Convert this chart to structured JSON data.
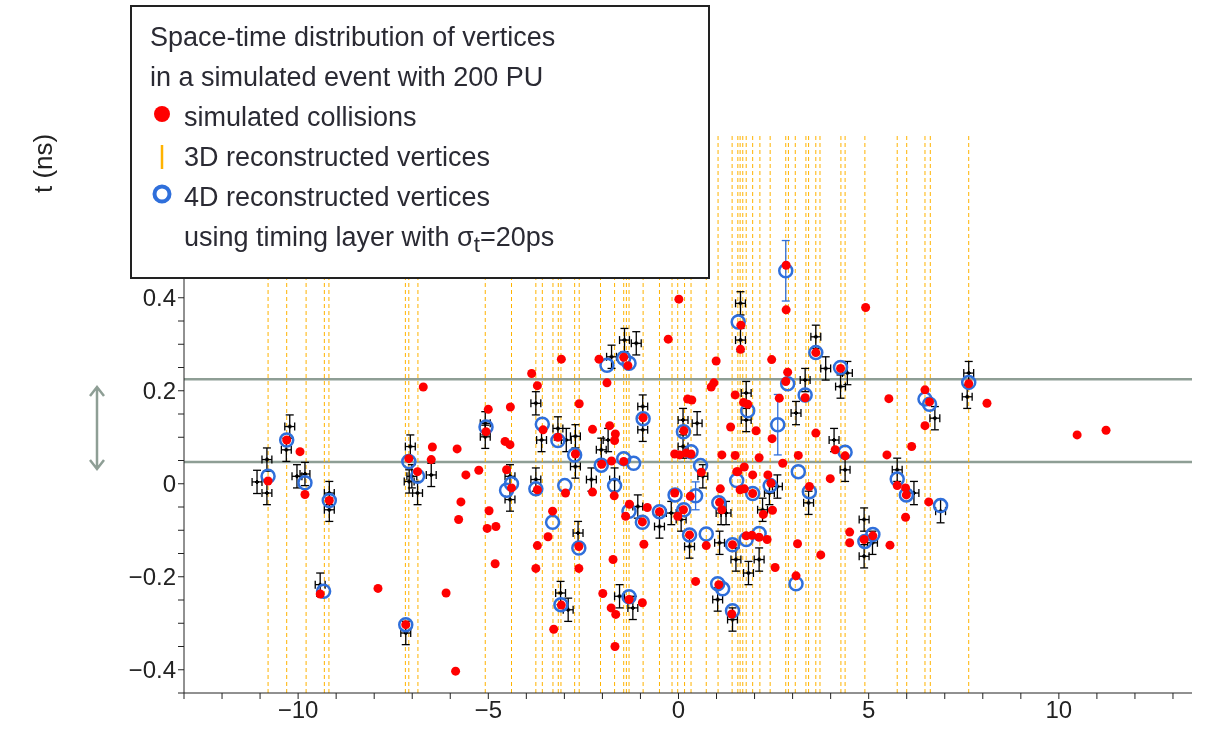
{
  "chart_data": {
    "type": "scatter",
    "ylabel": "t (ns)",
    "legend_title": "Space-time distribution of vertices\nin a simulated event with 200 PU",
    "legend": "top left",
    "annotations": [
      "3D reconstructed vertices"
    ],
    "xlim": [
      -13,
      13.5
    ],
    "ylim": [
      -0.45,
      0.75
    ],
    "xticks": [
      {
        "value": -13,
        "label": null
      },
      {
        "value": -12,
        "label": null
      },
      {
        "value": -11,
        "label": null
      },
      {
        "value": -10,
        "label": "−10"
      },
      {
        "value": -9,
        "label": null
      },
      {
        "value": -8,
        "label": null
      },
      {
        "value": -7,
        "label": null
      },
      {
        "value": -6,
        "label": null
      },
      {
        "value": -5,
        "label": "−5"
      },
      {
        "value": -4,
        "label": null
      },
      {
        "value": -3,
        "label": null
      },
      {
        "value": -2,
        "label": null
      },
      {
        "value": -1,
        "label": null
      },
      0,
      {
        "value": 1,
        "label": null
      },
      {
        "value": 2,
        "label": null
      },
      {
        "value": 3,
        "label": null
      },
      {
        "value": 4,
        "label": null
      },
      5,
      {
        "value": 6,
        "label": null
      },
      {
        "value": 7,
        "label": null
      },
      {
        "value": 8,
        "label": null
      },
      {
        "value": 9,
        "label": null
      },
      10,
      {
        "value": 11,
        "label": null
      },
      {
        "value": 12,
        "label": null
      },
      {
        "value": 13,
        "label": null
      }
    ],
    "yticks": [
      {
        "value": -0.45,
        "label": null
      },
      {
        "value": -0.4,
        "label": "−0.4"
      },
      {
        "value": -0.35,
        "label": null
      },
      {
        "value": -0.3,
        "label": null
      },
      {
        "value": -0.25,
        "label": null
      },
      {
        "value": -0.2,
        "label": "−0.2"
      },
      {
        "value": -0.15,
        "label": null
      },
      {
        "value": -0.1,
        "label": null
      },
      {
        "value": -0.05,
        "label": null
      },
      0,
      {
        "value": 0.05,
        "label": null
      },
      {
        "value": 0.1,
        "label": null
      },
      {
        "value": 0.15,
        "label": null
      },
      0.2,
      {
        "value": 0.25,
        "label": null
      },
      {
        "value": 0.3,
        "label": null
      },
      {
        "value": 0.35,
        "label": null
      },
      0.4
    ],
    "series": [
      {
        "name": "simulated collisions",
        "color": "#ff0000",
        "marker": "circle",
        "x": [
          -10.79,
          -10.3,
          -9.95,
          -9.82,
          -9.18,
          -9.42,
          -7.9,
          -7.17,
          -7.09,
          -6.86,
          -6.71,
          -6.47,
          -6.5,
          -5.82,
          -5.59,
          -5.25,
          -5.72,
          -5.78,
          -6.11,
          -5.86,
          -5.06,
          -5.0,
          -4.98,
          -5.03,
          -4.8,
          -4.82,
          -4.42,
          -4.56,
          -4.43,
          -4.52,
          -4.39,
          -3.86,
          -3.71,
          -3.56,
          -3.71,
          -3.75,
          -3.71,
          -3.08,
          -3.17,
          -3.31,
          -3.43,
          -2.97,
          -3.08,
          -3.28,
          -2.61,
          -2.71,
          -2.62,
          -2.62,
          -2.26,
          -2.09,
          -1.88,
          -2.02,
          -2.26,
          -1.81,
          -1.66,
          -1.68,
          -1.76,
          -1.69,
          -1.72,
          -1.99,
          -1.77,
          -1.65,
          -1.67,
          -1.44,
          -1.33,
          -1.44,
          -1.29,
          -1.39,
          -1.3,
          -0.95,
          -0.93,
          -0.82,
          -0.95,
          -0.91,
          -0.5,
          -0.27,
          0.01,
          -0.1,
          0.03,
          0.14,
          0.24,
          0.35,
          0.2,
          0.33,
          -0.1,
          0.31,
          -0.02,
          0.13,
          0.29,
          0.6,
          0.45,
          0.86,
          0.93,
          0.99,
          1.14,
          1.1,
          1.08,
          1.14,
          0.73,
          1.06,
          1.42,
          1.4,
          1.49,
          1.37,
          1.49,
          1.53,
          2.83,
          2.83,
          1.64,
          1.63,
          2.45,
          4.92,
          3.61,
          4.26,
          2.87,
          2.82,
          1.71,
          1.82,
          2.65,
          3.33,
          5.53,
          6.48,
          6.6,
          6.48,
          7.63,
          2.04,
          2.46,
          3.61,
          4.12,
          4.38,
          5.48,
          6.13,
          2.12,
          2.74,
          3.15,
          1.56,
          1.73,
          1.95,
          1.62,
          1.73,
          2.35,
          2.43,
          1.95,
          3.44,
          3.99,
          5.75,
          5.97,
          5.99,
          6.58,
          5.97,
          2.47,
          2.23,
          1.78,
          1.93,
          2.12,
          2.33,
          3.13,
          3.74,
          4.5,
          4.5,
          4.88,
          5.11,
          5.56,
          2.54,
          3.09,
          8.11,
          10.48,
          11.24
        ],
        "values": [
          0.006,
          0.094,
          0.069,
          -0.023,
          -0.036,
          -0.237,
          -0.225,
          -0.303,
          0.054,
          0.026,
          0.208,
          0.079,
          0.052,
          0.075,
          0.019,
          0.029,
          -0.039,
          -0.077,
          -0.235,
          -0.403,
          0.112,
          0.16,
          -0.058,
          -0.096,
          -0.092,
          -0.172,
          0.165,
          0.091,
          0.084,
          0.03,
          -0.009,
          0.237,
          0.211,
          0.116,
          -0.133,
          -0.182,
          -0.013,
          0.268,
          0.1,
          -0.059,
          -0.114,
          -0.02,
          -0.261,
          -0.313,
          0.172,
          0.064,
          -0.135,
          -0.182,
          0.117,
          0.268,
          0.217,
          0.042,
          -0.018,
          0.125,
          0.107,
          0.093,
          0.049,
          -0.026,
          -0.163,
          -0.236,
          -0.267,
          -0.281,
          -0.35,
          0.272,
          0.254,
          0.048,
          -0.044,
          -0.07,
          -0.249,
          -0.256,
          0.142,
          -0.051,
          -0.082,
          -0.13,
          -0.06,
          0.311,
          0.397,
          0.064,
          0.062,
          0.114,
          0.182,
          0.18,
          0.066,
          0.064,
          -0.02,
          -0.027,
          -0.07,
          -0.056,
          -0.11,
          0.025,
          -0.21,
          0.208,
          0.217,
          0.264,
          0.062,
          -0.011,
          -0.04,
          -0.056,
          -0.133,
          -0.217,
          -0.131,
          -0.28,
          0.191,
          0.122,
          0.061,
          0.026,
          0.47,
          0.374,
          0.341,
          0.289,
          0.267,
          0.379,
          0.282,
          0.248,
          0.24,
          0.22,
          0.175,
          0.171,
          0.184,
          0.185,
          0.183,
          0.202,
          0.176,
          0.125,
          0.215,
          0.114,
          0.097,
          0.109,
          0.073,
          0.06,
          0.062,
          0.08,
          0.056,
          0.044,
          0.061,
          0.026,
          0.036,
          0.019,
          -0.013,
          -0.011,
          0.019,
          0.001,
          -0.021,
          -0.006,
          0.011,
          -0.004,
          -0.009,
          -0.024,
          -0.039,
          -0.072,
          -0.057,
          -0.066,
          -0.112,
          -0.111,
          -0.115,
          -0.12,
          -0.129,
          -0.153,
          -0.104,
          -0.127,
          -0.12,
          -0.112,
          -0.132,
          -0.18,
          -0.198,
          0.173,
          0.105,
          0.115
        ]
      },
      {
        "name": "4D reconstructed vertices\nusing timing layer with σ$_{t}$=20ps",
        "color": "#2f6fdb",
        "marker": "circle",
        "x": [
          -10.79,
          -10.3,
          -9.82,
          -9.18,
          -9.33,
          -7.17,
          -7.09,
          -6.86,
          -5.06,
          -4.52,
          -4.39,
          -3.75,
          -3.58,
          -3.17,
          -3.31,
          -2.99,
          -2.73,
          -2.62,
          -3.09,
          -1.88,
          -2.03,
          -1.68,
          -1.44,
          -1.3,
          -1.44,
          -1.18,
          -1.3,
          -1.3,
          -0.93,
          -0.95,
          -0.5,
          0.13,
          0.33,
          0.58,
          0.45,
          -0.09,
          0.14,
          0.29,
          0.73,
          1.06,
          1.03,
          1.16,
          1.42,
          1.42,
          1.53,
          1.57,
          2.82,
          3.61,
          4.26,
          2.87,
          1.82,
          2.61,
          3.33,
          6.48,
          6.6,
          7.63,
          4.38,
          1.95,
          1.78,
          2.12,
          2.41,
          3.15,
          3.44,
          3.09,
          4.9,
          5.11,
          5.75,
          5.99,
          6.89
        ],
        "values": [
          0.016,
          0.094,
          0.002,
          -0.036,
          -0.231,
          -0.303,
          0.048,
          0.016,
          0.122,
          -0.014,
          0.0,
          -0.011,
          0.128,
          0.093,
          -0.083,
          -0.004,
          0.062,
          -0.138,
          -0.26,
          0.255,
          0.04,
          -0.004,
          0.27,
          0.259,
          0.054,
          0.044,
          -0.059,
          -0.243,
          0.14,
          -0.083,
          -0.06,
          0.112,
          0.069,
          0.039,
          -0.026,
          -0.024,
          -0.056,
          -0.11,
          -0.108,
          -0.041,
          -0.215,
          -0.226,
          -0.131,
          -0.273,
          0.007,
          0.348,
          0.458,
          0.282,
          0.25,
          0.215,
          0.157,
          0.127,
          0.191,
          0.182,
          0.171,
          0.218,
          0.068,
          -0.021,
          -0.12,
          -0.107,
          -0.004,
          0.026,
          -0.017,
          -0.215,
          -0.124,
          -0.109,
          0.01,
          -0.024,
          -0.047
        ],
        "errors": [
          null,
          null,
          null,
          null,
          null,
          null,
          null,
          null,
          null,
          null,
          null,
          null,
          null,
          null,
          null,
          null,
          null,
          null,
          null,
          null,
          null,
          null,
          null,
          null,
          null,
          null,
          null,
          null,
          null,
          null,
          null,
          null,
          null,
          null,
          0.03,
          null,
          null,
          null,
          null,
          null,
          null,
          null,
          null,
          null,
          null,
          null,
          0.065,
          null,
          null,
          null,
          null,
          0.065,
          null,
          null,
          null,
          null,
          null,
          null,
          null,
          null,
          null,
          null,
          null,
          null,
          null,
          null,
          null,
          null,
          null
        ]
      },
      {
        "color": "#000000",
        "marker": "cross",
        "x": [
          -11.08,
          -10.82,
          -10.82,
          -10.22,
          -10.31,
          -10.03,
          -9.82,
          -9.18,
          -9.18,
          -9.42,
          -7.17,
          -7.05,
          -7.01,
          -7.08,
          -6.86,
          -6.5,
          -5.08,
          -5.08,
          -4.43,
          -4.43,
          -3.75,
          -3.75,
          -3.6,
          -3.17,
          -2.95,
          -3.1,
          -2.9,
          -2.71,
          -2.71,
          -2.64,
          -2.29,
          -2.03,
          -1.85,
          -1.76,
          -1.68,
          -1.42,
          -1.11,
          -1.55,
          -1.2,
          -0.94,
          -0.94,
          -1.07,
          -0.5,
          -0.19,
          0.12,
          0.12,
          0.49,
          0.07,
          0.29,
          0.64,
          1.08,
          1.03,
          1.25,
          1.42,
          1.51,
          1.63,
          1.63,
          1.78,
          1.78,
          3.09,
          3.33,
          3.61,
          3.87,
          4.44,
          4.26,
          4.09,
          4.38,
          5.75,
          6.19,
          6.74,
          7.59,
          6.89,
          4.88,
          4.88,
          5.1,
          2.12,
          1.84,
          2.39,
          2.6,
          3.42,
          2.21,
          1.12,
          7.63
        ],
        "values": [
          0.004,
          0.052,
          -0.02,
          0.123,
          0.073,
          0.016,
          0.021,
          -0.02,
          -0.056,
          -0.217,
          -0.321,
          0.08,
          0.016,
          0.005,
          -0.02,
          0.019,
          0.13,
          0.101,
          0.016,
          -0.034,
          0.173,
          0.009,
          0.094,
          0.119,
          0.094,
          -0.235,
          -0.271,
          0.102,
          0.037,
          -0.106,
          0.009,
          0.073,
          0.094,
          0.273,
          0.009,
          0.309,
          0.302,
          -0.242,
          -0.267,
          0.166,
          0.116,
          -0.049,
          -0.092,
          -0.063,
          0.137,
          0.08,
          0.13,
          -0.077,
          -0.135,
          0.016,
          -0.127,
          -0.249,
          -0.063,
          -0.292,
          -0.163,
          0.388,
          0.309,
          0.195,
          0.137,
          0.152,
          0.223,
          0.316,
          0.248,
          0.238,
          0.209,
          0.094,
          0.03,
          0.03,
          -0.02,
          0.141,
          0.187,
          -0.059,
          -0.077,
          -0.156,
          -0.127,
          -0.163,
          -0.192,
          -0.02,
          -0.006,
          -0.041,
          -0.056,
          -0.063,
          0.238
        ],
        "errors": [
          0.025,
          0.025,
          0.025,
          0.025,
          0.025,
          0.025,
          0.025,
          0.025,
          0.025,
          0.025,
          0.025,
          0.025,
          0.025,
          0.025,
          0.025,
          0.025,
          0.025,
          0.025,
          0.025,
          0.025,
          0.025,
          0.025,
          0.025,
          0.025,
          0.025,
          0.025,
          0.025,
          0.025,
          0.025,
          0.025,
          0.025,
          0.025,
          0.025,
          0.025,
          0.025,
          0.025,
          0.025,
          0.025,
          0.025,
          0.025,
          0.025,
          0.025,
          0.025,
          0.025,
          0.025,
          0.025,
          0.025,
          0.025,
          0.025,
          0.025,
          0.025,
          0.025,
          0.025,
          0.025,
          0.025,
          0.025,
          0.025,
          0.025,
          0.025,
          0.025,
          0.025,
          0.025,
          0.025,
          0.025,
          0.025,
          0.025,
          0.025,
          0.025,
          0.025,
          0.025,
          0.025,
          0.025,
          0.025,
          0.025,
          0.025,
          0.025,
          0.025,
          0.025,
          0.025,
          0.025,
          0.025,
          0.025,
          0.025
        ],
        "xerrors": [
          0.13,
          0.13,
          0.13,
          0.13,
          0.13,
          0.13,
          0.13,
          0.13,
          0.13,
          0.13,
          0.13,
          0.13,
          0.13,
          0.13,
          0.13,
          0.13,
          0.13,
          0.13,
          0.13,
          0.13,
          0.13,
          0.13,
          0.13,
          0.13,
          0.13,
          0.13,
          0.13,
          0.13,
          0.13,
          0.13,
          0.13,
          0.13,
          0.13,
          0.13,
          0.13,
          0.13,
          0.13,
          0.13,
          0.13,
          0.13,
          0.13,
          0.13,
          0.13,
          0.13,
          0.13,
          0.13,
          0.13,
          0.13,
          0.13,
          0.13,
          0.13,
          0.13,
          0.13,
          0.13,
          0.13,
          0.13,
          0.13,
          0.13,
          0.13,
          0.13,
          0.13,
          0.13,
          0.13,
          0.13,
          0.13,
          0.13,
          0.13,
          0.13,
          0.13,
          0.13,
          0.13,
          0.13,
          0.13,
          0.13,
          0.13,
          0.13,
          0.13,
          0.13,
          0.13,
          0.13,
          0.13,
          0.13,
          0.13
        ]
      }
    ],
    "ref_lines": [
      {
        "axis": "y",
        "value": 0.225,
        "color": "#8e9e95",
        "line_style": "solid"
      },
      {
        "axis": "y",
        "value": 0.047,
        "color": "#8e9e95",
        "line_style": "solid"
      },
      {
        "axis": "x",
        "value": -10.79,
        "color": "#ffb300",
        "line_style": "dashed"
      },
      {
        "axis": "x",
        "value": -10.3,
        "color": "#ffb300",
        "line_style": "dashed"
      },
      {
        "axis": "x",
        "value": -9.79,
        "color": "#ffb300",
        "line_style": "dashed"
      },
      {
        "axis": "x",
        "value": -9.31,
        "color": "#ffb300",
        "line_style": "dashed"
      },
      {
        "axis": "x",
        "value": -9.19,
        "color": "#ffb300",
        "line_style": "dashed"
      },
      {
        "axis": "x",
        "value": -7.18,
        "color": "#ffb300",
        "line_style": "dashed"
      },
      {
        "axis": "x",
        "value": -7.09,
        "color": "#ffb300",
        "line_style": "dashed"
      },
      {
        "axis": "x",
        "value": -6.85,
        "color": "#ffb300",
        "line_style": "dashed"
      },
      {
        "axis": "x",
        "value": -5.08,
        "color": "#ffb300",
        "line_style": "dashed"
      },
      {
        "axis": "x",
        "value": -4.39,
        "color": "#ffb300",
        "line_style": "dashed"
      },
      {
        "axis": "x",
        "value": -3.75,
        "color": "#ffb300",
        "line_style": "dashed"
      },
      {
        "axis": "x",
        "value": -3.58,
        "color": "#ffb300",
        "line_style": "dashed"
      },
      {
        "axis": "x",
        "value": -3.3,
        "color": "#ffb300",
        "line_style": "dashed"
      },
      {
        "axis": "x",
        "value": -3.16,
        "color": "#ffb300",
        "line_style": "dashed"
      },
      {
        "axis": "x",
        "value": -3.09,
        "color": "#ffb300",
        "line_style": "dashed"
      },
      {
        "axis": "x",
        "value": -2.73,
        "color": "#ffb300",
        "line_style": "dashed"
      },
      {
        "axis": "x",
        "value": -2.61,
        "color": "#ffb300",
        "line_style": "dashed"
      },
      {
        "axis": "x",
        "value": -2.05,
        "color": "#ffb300",
        "line_style": "dashed"
      },
      {
        "axis": "x",
        "value": -1.68,
        "color": "#ffb300",
        "line_style": "dashed"
      },
      {
        "axis": "x",
        "value": -1.44,
        "color": "#ffb300",
        "line_style": "dashed"
      },
      {
        "axis": "x",
        "value": -1.37,
        "color": "#ffb300",
        "line_style": "dashed"
      },
      {
        "axis": "x",
        "value": -1.3,
        "color": "#ffb300",
        "line_style": "dashed"
      },
      {
        "axis": "x",
        "value": -0.93,
        "color": "#ffb300",
        "line_style": "dashed"
      },
      {
        "axis": "x",
        "value": -0.5,
        "color": "#ffb300",
        "line_style": "dashed"
      },
      {
        "axis": "x",
        "value": -0.17,
        "color": "#ffb300",
        "line_style": "dashed"
      },
      {
        "axis": "x",
        "value": -0.02,
        "color": "#ffb300",
        "line_style": "dashed"
      },
      {
        "axis": "x",
        "value": 0.16,
        "color": "#ffb300",
        "line_style": "dashed"
      },
      {
        "axis": "x",
        "value": 0.33,
        "color": "#ffb300",
        "line_style": "dashed"
      },
      {
        "axis": "x",
        "value": 0.73,
        "color": "#ffb300",
        "line_style": "dashed"
      },
      {
        "axis": "x",
        "value": 1.04,
        "color": "#ffb300",
        "line_style": "dashed"
      },
      {
        "axis": "x",
        "value": 1.41,
        "color": "#ffb300",
        "line_style": "dashed"
      },
      {
        "axis": "x",
        "value": 1.56,
        "color": "#ffb300",
        "line_style": "dashed"
      },
      {
        "axis": "x",
        "value": 1.62,
        "color": "#ffb300",
        "line_style": "dashed"
      },
      {
        "axis": "x",
        "value": 1.69,
        "color": "#ffb300",
        "line_style": "dashed"
      },
      {
        "axis": "x",
        "value": 1.78,
        "color": "#ffb300",
        "line_style": "dashed"
      },
      {
        "axis": "x",
        "value": 1.95,
        "color": "#ffb300",
        "line_style": "dashed"
      },
      {
        "axis": "x",
        "value": 2.14,
        "color": "#ffb300",
        "line_style": "dashed"
      },
      {
        "axis": "x",
        "value": 2.41,
        "color": "#ffb300",
        "line_style": "dashed"
      },
      {
        "axis": "x",
        "value": 2.82,
        "color": "#ffb300",
        "line_style": "dashed"
      },
      {
        "axis": "x",
        "value": 2.89,
        "color": "#ffb300",
        "line_style": "dashed"
      },
      {
        "axis": "x",
        "value": 3.07,
        "color": "#ffb300",
        "line_style": "dashed"
      },
      {
        "axis": "x",
        "value": 3.35,
        "color": "#ffb300",
        "line_style": "dashed"
      },
      {
        "axis": "x",
        "value": 3.42,
        "color": "#ffb300",
        "line_style": "dashed"
      },
      {
        "axis": "x",
        "value": 3.61,
        "color": "#ffb300",
        "line_style": "dashed"
      },
      {
        "axis": "x",
        "value": 3.72,
        "color": "#ffb300",
        "line_style": "dashed"
      },
      {
        "axis": "x",
        "value": 4.27,
        "color": "#ffb300",
        "line_style": "dashed"
      },
      {
        "axis": "x",
        "value": 4.38,
        "color": "#ffb300",
        "line_style": "dashed"
      },
      {
        "axis": "x",
        "value": 4.9,
        "color": "#ffb300",
        "line_style": "dashed"
      },
      {
        "axis": "x",
        "value": 5.75,
        "color": "#ffb300",
        "line_style": "dashed"
      },
      {
        "axis": "x",
        "value": 6.0,
        "color": "#ffb300",
        "line_style": "dashed"
      },
      {
        "axis": "x",
        "value": 6.48,
        "color": "#ffb300",
        "line_style": "dashed"
      },
      {
        "axis": "x",
        "value": 6.62,
        "color": "#ffb300",
        "line_style": "dashed"
      },
      {
        "axis": "x",
        "value": 7.63,
        "color": "#ffb300",
        "line_style": "dashed"
      }
    ]
  }
}
